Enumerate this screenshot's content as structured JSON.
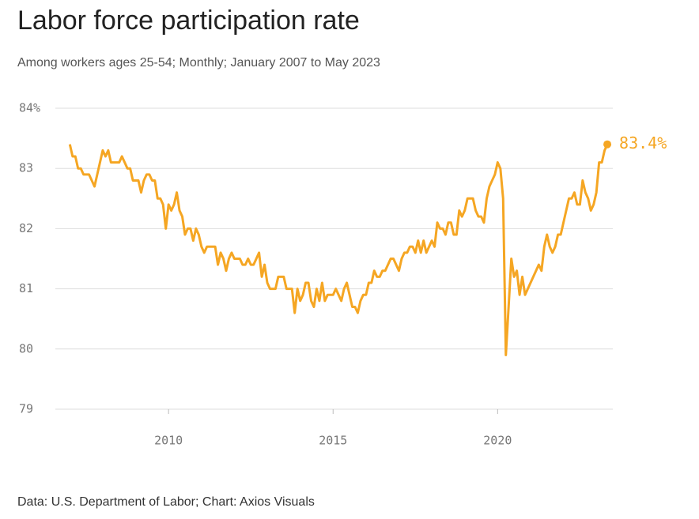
{
  "chart_data": {
    "type": "line",
    "title": "Labor force participation rate",
    "subtitle": "Among workers ages 25-54; Monthly; January 2007 to May 2023",
    "source": "Data: U.S. Department of Labor; Chart: Axios Visuals",
    "x": [
      2007,
      2007.0833,
      2007.1667,
      2007.25,
      2007.3333,
      2007.4167,
      2007.5,
      2007.5833,
      2007.6667,
      2007.75,
      2007.8333,
      2007.9167,
      2008,
      2008.0833,
      2008.1667,
      2008.25,
      2008.3333,
      2008.4167,
      2008.5,
      2008.5833,
      2008.6667,
      2008.75,
      2008.8333,
      2008.9167,
      2009,
      2009.0833,
      2009.1667,
      2009.25,
      2009.3333,
      2009.4167,
      2009.5,
      2009.5833,
      2009.6667,
      2009.75,
      2009.8333,
      2009.9167,
      2010,
      2010.0833,
      2010.1667,
      2010.25,
      2010.3333,
      2010.4167,
      2010.5,
      2010.5833,
      2010.6667,
      2010.75,
      2010.8333,
      2010.9167,
      2011,
      2011.0833,
      2011.1667,
      2011.25,
      2011.3333,
      2011.4167,
      2011.5,
      2011.5833,
      2011.6667,
      2011.75,
      2011.8333,
      2011.9167,
      2012,
      2012.0833,
      2012.1667,
      2012.25,
      2012.3333,
      2012.4167,
      2012.5,
      2012.5833,
      2012.6667,
      2012.75,
      2012.8333,
      2012.9167,
      2013,
      2013.0833,
      2013.1667,
      2013.25,
      2013.3333,
      2013.4167,
      2013.5,
      2013.5833,
      2013.6667,
      2013.75,
      2013.8333,
      2013.9167,
      2014,
      2014.0833,
      2014.1667,
      2014.25,
      2014.3333,
      2014.4167,
      2014.5,
      2014.5833,
      2014.6667,
      2014.75,
      2014.8333,
      2014.9167,
      2015,
      2015.0833,
      2015.1667,
      2015.25,
      2015.3333,
      2015.4167,
      2015.5,
      2015.5833,
      2015.6667,
      2015.75,
      2015.8333,
      2015.9167,
      2016,
      2016.0833,
      2016.1667,
      2016.25,
      2016.3333,
      2016.4167,
      2016.5,
      2016.5833,
      2016.6667,
      2016.75,
      2016.8333,
      2016.9167,
      2017,
      2017.0833,
      2017.1667,
      2017.25,
      2017.3333,
      2017.4167,
      2017.5,
      2017.5833,
      2017.6667,
      2017.75,
      2017.8333,
      2017.9167,
      2018,
      2018.0833,
      2018.1667,
      2018.25,
      2018.3333,
      2018.4167,
      2018.5,
      2018.5833,
      2018.6667,
      2018.75,
      2018.8333,
      2018.9167,
      2019,
      2019.0833,
      2019.1667,
      2019.25,
      2019.3333,
      2019.4167,
      2019.5,
      2019.5833,
      2019.6667,
      2019.75,
      2019.8333,
      2019.9167,
      2020,
      2020.0833,
      2020.1667,
      2020.25,
      2020.3333,
      2020.4167,
      2020.5,
      2020.5833,
      2020.6667,
      2020.75,
      2020.8333,
      2020.9167,
      2021,
      2021.0833,
      2021.1667,
      2021.25,
      2021.3333,
      2021.4167,
      2021.5,
      2021.5833,
      2021.6667,
      2021.75,
      2021.8333,
      2021.9167,
      2022,
      2022.0833,
      2022.1667,
      2022.25,
      2022.3333,
      2022.4167,
      2022.5,
      2022.5833,
      2022.6667,
      2022.75,
      2022.8333,
      2022.9167,
      2023,
      2023.0833,
      2023.1667,
      2023.25,
      2023.3333
    ],
    "series": [
      {
        "color": "#f5a623",
        "values": [
          83.4,
          83.2,
          83.2,
          83.0,
          83.0,
          82.9,
          82.9,
          82.9,
          82.8,
          82.7,
          82.9,
          83.1,
          83.3,
          83.2,
          83.3,
          83.1,
          83.1,
          83.1,
          83.1,
          83.2,
          83.1,
          83.0,
          83.0,
          82.8,
          82.8,
          82.8,
          82.6,
          82.8,
          82.9,
          82.9,
          82.8,
          82.8,
          82.5,
          82.5,
          82.4,
          82.0,
          82.4,
          82.3,
          82.4,
          82.6,
          82.3,
          82.2,
          81.9,
          82.0,
          82.0,
          81.8,
          82.0,
          81.9,
          81.7,
          81.6,
          81.7,
          81.7,
          81.7,
          81.7,
          81.4,
          81.6,
          81.5,
          81.3,
          81.5,
          81.6,
          81.5,
          81.5,
          81.5,
          81.4,
          81.4,
          81.5,
          81.4,
          81.4,
          81.5,
          81.6,
          81.2,
          81.4,
          81.1,
          81.0,
          81.0,
          81.0,
          81.2,
          81.2,
          81.2,
          81.0,
          81.0,
          81.0,
          80.6,
          81.0,
          80.8,
          80.9,
          81.1,
          81.1,
          80.8,
          80.7,
          81.0,
          80.8,
          81.1,
          80.8,
          80.9,
          80.9,
          80.9,
          81.0,
          80.9,
          80.8,
          81.0,
          81.1,
          80.9,
          80.7,
          80.7,
          80.6,
          80.8,
          80.9,
          80.9,
          81.1,
          81.1,
          81.3,
          81.2,
          81.2,
          81.3,
          81.3,
          81.4,
          81.5,
          81.5,
          81.4,
          81.3,
          81.5,
          81.6,
          81.6,
          81.7,
          81.7,
          81.6,
          81.8,
          81.6,
          81.8,
          81.6,
          81.7,
          81.8,
          81.7,
          82.1,
          82.0,
          82.0,
          81.9,
          82.1,
          82.1,
          81.9,
          81.9,
          82.3,
          82.2,
          82.3,
          82.5,
          82.5,
          82.5,
          82.3,
          82.2,
          82.2,
          82.1,
          82.5,
          82.7,
          82.8,
          82.9,
          83.1,
          83.0,
          82.5,
          79.9,
          80.7,
          81.5,
          81.2,
          81.3,
          80.9,
          81.2,
          80.9,
          81.0,
          81.1,
          81.2,
          81.3,
          81.4,
          81.3,
          81.7,
          81.9,
          81.7,
          81.6,
          81.7,
          81.9,
          81.9,
          82.1,
          82.3,
          82.5,
          82.5,
          82.6,
          82.4,
          82.4,
          82.8,
          82.6,
          82.5,
          82.3,
          82.4,
          82.6,
          83.1,
          83.1,
          83.3,
          83.4
        ]
      }
    ],
    "end_label": "83.4%",
    "xlim": [
      2006.56,
      2023.5
    ],
    "xticks": [
      2010,
      2015,
      2020
    ],
    "ylim": [
      79,
      84
    ],
    "yticks": [
      79,
      80,
      81,
      82,
      83,
      {
        "value": 84,
        "label": "84%"
      }
    ],
    "grid": true
  }
}
